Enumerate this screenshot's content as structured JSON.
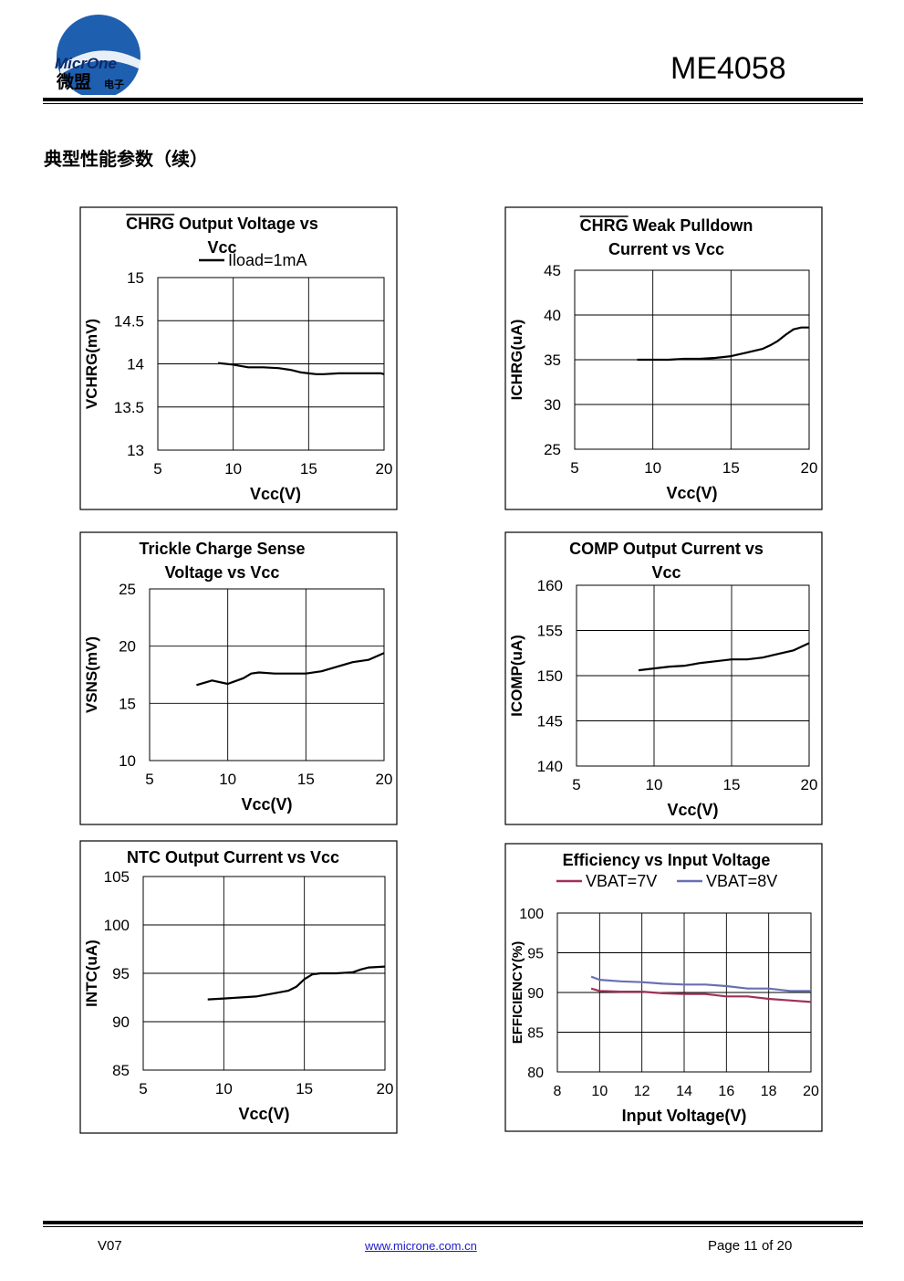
{
  "header": {
    "logo_text_latin": "MicrOne",
    "logo_text_cn": "微盟",
    "logo_text_cn_small": "电子",
    "doc_title": "ME4058"
  },
  "section_heading": "典型性能参数（续）",
  "footer": {
    "version": "V07",
    "link": "www.microne.com.cn",
    "page": "Page 11 of 20"
  },
  "chart_data": [
    {
      "id": "chrg-output-voltage",
      "type": "line",
      "title_lines": [
        "CHRG Output Voltage vs",
        "Vcc"
      ],
      "title_overline": "CHRG",
      "xlabel": "Vcc(V)",
      "ylabel": "VCHRG(mV)",
      "xlim": [
        5,
        20
      ],
      "ylim": [
        13,
        15
      ],
      "xticks": [
        5,
        10,
        15,
        20
      ],
      "yticks": [
        13,
        13.5,
        14,
        14.5,
        15
      ],
      "xtick_labels": [
        "5",
        "10",
        "15",
        "20"
      ],
      "ytick_labels": [
        "13",
        "13.5",
        "14",
        "14.5",
        "15"
      ],
      "legend": [
        "Iload=1mA"
      ],
      "series": [
        {
          "name": "Iload=1mA",
          "color": "#000000",
          "x": [
            9,
            10,
            11,
            12,
            13,
            13.8,
            14.5,
            15,
            15.5,
            16,
            17,
            18,
            19,
            19.8,
            20
          ],
          "y": [
            14.01,
            13.99,
            13.96,
            13.96,
            13.95,
            13.93,
            13.9,
            13.89,
            13.88,
            13.88,
            13.89,
            13.89,
            13.89,
            13.89,
            13.88
          ]
        }
      ]
    },
    {
      "id": "chrg-weak-pulldown",
      "type": "line",
      "title_lines": [
        "CHRG Weak Pulldown",
        "Current vs Vcc"
      ],
      "title_overline": "CHRG",
      "xlabel": "Vcc(V)",
      "ylabel": "ICHRG(uA)",
      "xlim": [
        5,
        20
      ],
      "ylim": [
        25,
        45
      ],
      "xticks": [
        5,
        10,
        15,
        20
      ],
      "yticks": [
        25,
        30,
        35,
        40,
        45
      ],
      "xtick_labels": [
        "5",
        "10",
        "15",
        "20"
      ],
      "ytick_labels": [
        "25",
        "30",
        "35",
        "40",
        "45"
      ],
      "legend": [],
      "series": [
        {
          "name": "ICHRG",
          "color": "#000000",
          "x": [
            9,
            10,
            11,
            12,
            13,
            14,
            15,
            16,
            17,
            17.5,
            18,
            18.5,
            19,
            19.5,
            20
          ],
          "y": [
            35,
            35,
            35,
            35.1,
            35.1,
            35.2,
            35.4,
            35.8,
            36.2,
            36.6,
            37.1,
            37.8,
            38.4,
            38.6,
            38.6
          ]
        }
      ]
    },
    {
      "id": "trickle-charge-sense",
      "type": "line",
      "title_lines": [
        "Trickle Charge Sense",
        "Voltage vs Vcc"
      ],
      "title_overline": "",
      "xlabel": "Vcc(V)",
      "ylabel": "VSNS(mV)",
      "xlim": [
        5,
        20
      ],
      "ylim": [
        10,
        25
      ],
      "xticks": [
        5,
        10,
        15,
        20
      ],
      "yticks": [
        10,
        15,
        20,
        25
      ],
      "xtick_labels": [
        "5",
        "10",
        "15",
        "20"
      ],
      "ytick_labels": [
        "10",
        "15",
        "20",
        "25"
      ],
      "legend": [],
      "series": [
        {
          "name": "VSNS",
          "color": "#000000",
          "x": [
            8,
            9,
            10,
            11,
            11.5,
            12,
            13,
            14,
            15,
            16,
            17,
            18,
            19,
            20
          ],
          "y": [
            16.6,
            17,
            16.7,
            17.2,
            17.6,
            17.7,
            17.6,
            17.6,
            17.6,
            17.8,
            18.2,
            18.6,
            18.8,
            19.4
          ]
        }
      ]
    },
    {
      "id": "comp-output-current",
      "type": "line",
      "title_lines": [
        "COMP Output Current vs",
        "Vcc"
      ],
      "title_overline": "",
      "xlabel": "Vcc(V)",
      "ylabel": "ICOMP(uA)",
      "xlim": [
        5,
        20
      ],
      "ylim": [
        140,
        160
      ],
      "xticks": [
        5,
        10,
        15,
        20
      ],
      "yticks": [
        140,
        145,
        150,
        155,
        160
      ],
      "xtick_labels": [
        "5",
        "10",
        "15",
        "20"
      ],
      "ytick_labels": [
        "140",
        "145",
        "150",
        "155",
        "160"
      ],
      "legend": [],
      "series": [
        {
          "name": "ICOMP",
          "color": "#000000",
          "x": [
            9,
            10,
            11,
            12,
            13,
            14,
            15,
            16,
            17,
            18,
            19,
            20
          ],
          "y": [
            150.6,
            150.8,
            151,
            151.1,
            151.4,
            151.6,
            151.8,
            151.8,
            152,
            152.4,
            152.8,
            153.6
          ]
        }
      ]
    },
    {
      "id": "ntc-output-current",
      "type": "line",
      "title_lines": [
        "NTC Output Current vs Vcc"
      ],
      "title_overline": "",
      "xlabel": "Vcc(V)",
      "ylabel": "INTC(uA)",
      "xlim": [
        5,
        20
      ],
      "ylim": [
        85,
        105
      ],
      "xticks": [
        5,
        10,
        15,
        20
      ],
      "yticks": [
        85,
        90,
        95,
        100,
        105
      ],
      "xtick_labels": [
        "5",
        "10",
        "15",
        "20"
      ],
      "ytick_labels": [
        "85",
        "90",
        "95",
        "100",
        "105"
      ],
      "legend": [],
      "series": [
        {
          "name": "INTC",
          "color": "#000000",
          "x": [
            9,
            10,
            11,
            12,
            13,
            14,
            14.5,
            15,
            15.5,
            16,
            17,
            18,
            18.5,
            19,
            20
          ],
          "y": [
            92.3,
            92.4,
            92.5,
            92.6,
            92.9,
            93.2,
            93.6,
            94.4,
            94.9,
            95,
            95,
            95.1,
            95.4,
            95.6,
            95.7
          ]
        }
      ]
    },
    {
      "id": "efficiency-vs-input",
      "type": "line",
      "title_lines": [
        "Efficiency vs Input Voltage"
      ],
      "title_overline": "",
      "xlabel": "Input Voltage(V)",
      "ylabel": "EFFICIENCY(%)",
      "xlim": [
        8,
        20
      ],
      "ylim": [
        80,
        100
      ],
      "xticks": [
        8,
        10,
        12,
        14,
        16,
        18,
        20
      ],
      "yticks": [
        80,
        85,
        90,
        95,
        100
      ],
      "xtick_labels": [
        "8",
        "10",
        "12",
        "14",
        "16",
        "18",
        "20"
      ],
      "ytick_labels": [
        "80",
        "85",
        "90",
        "95",
        "100"
      ],
      "legend": [
        "VBAT=7V",
        "VBAT=8V"
      ],
      "series": [
        {
          "name": "VBAT=7V",
          "color": "#a0305a",
          "x": [
            9.6,
            10,
            11,
            12,
            13,
            14,
            15,
            16,
            17,
            18,
            19,
            20
          ],
          "y": [
            90.5,
            90.2,
            90.1,
            90.1,
            89.9,
            89.8,
            89.8,
            89.5,
            89.5,
            89.2,
            89,
            88.8
          ]
        },
        {
          "name": "VBAT=8V",
          "color": "#6870b0",
          "x": [
            9.6,
            10,
            11,
            12,
            13,
            14,
            15,
            16,
            17,
            18,
            19,
            20
          ],
          "y": [
            92,
            91.6,
            91.4,
            91.3,
            91.1,
            91,
            91,
            90.8,
            90.5,
            90.5,
            90.2,
            90.2
          ]
        }
      ]
    }
  ]
}
